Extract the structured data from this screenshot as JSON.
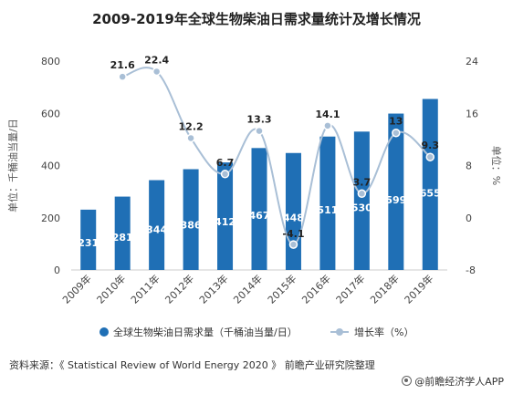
{
  "chart_data": {
    "type": "bar",
    "title": "2009-2019年全球生物柴油日需求量统计及增长情况",
    "categories": [
      "2009年",
      "2010年",
      "2011年",
      "2012年",
      "2013年",
      "2014年",
      "2015年",
      "2016年",
      "2017年",
      "2018年",
      "2019年"
    ],
    "series": [
      {
        "name": "全球生物柴油日需求量（千桶油当量/日）",
        "type": "bar",
        "axis": "left",
        "color": "#1f6fb5",
        "values": [
          231,
          281,
          344,
          386,
          412,
          467,
          448,
          511,
          530,
          599,
          655
        ],
        "labels": [
          "231",
          "281",
          "344",
          "386",
          "412",
          "467",
          "448",
          "511",
          "530",
          "599",
          "655"
        ]
      },
      {
        "name": "增长率（%）",
        "type": "line",
        "axis": "right",
        "color": "#a9bfd6",
        "values": [
          null,
          21.6,
          22.4,
          12.2,
          6.7,
          13.3,
          -4.1,
          14.1,
          3.7,
          13,
          9.3
        ],
        "labels": [
          "",
          "21.6",
          "22.4",
          "12.2",
          "6.7",
          "13.3",
          "-4.1",
          "14.1",
          "3.7",
          "13",
          "9.3"
        ]
      }
    ],
    "ylabel_left": "单位：千桶油当量/日",
    "ylabel_right": "单位：%",
    "ylim_left": [
      0,
      800
    ],
    "yticks_left": [
      "0",
      "200",
      "400",
      "600",
      "800"
    ],
    "ylim_right": [
      -8,
      24
    ],
    "yticks_right": [
      "-8",
      "0",
      "8",
      "16",
      "24"
    ],
    "grid": false,
    "legend_position": "bottom"
  },
  "footer": {
    "source": "资料来源：《 Statistical Review of World Energy 2020 》 前瞻产业研究院整理",
    "brand": "@前瞻经济学人APP"
  }
}
